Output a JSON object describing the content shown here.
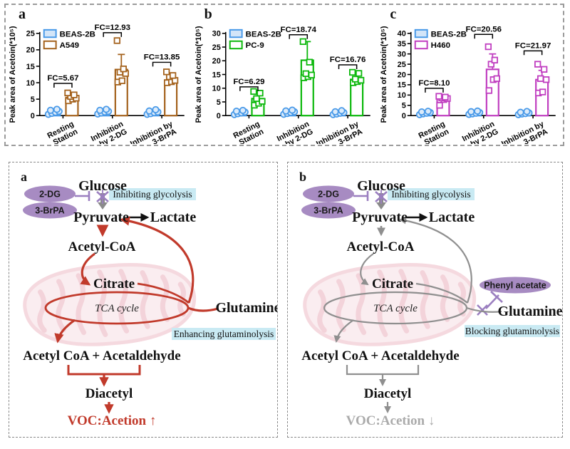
{
  "chart_data": [
    {
      "type": "bar",
      "letter": "a",
      "ylabel": "Peak area of Acetoin(*10⁵)",
      "ylim": [
        0,
        25
      ],
      "ytick_step": 5,
      "categories": [
        [
          "Resting",
          "Station"
        ],
        [
          "Inhibition",
          "by 2-DG"
        ],
        [
          "Inhibition by",
          "3-BrPA"
        ]
      ],
      "series": [
        {
          "name": "BEAS-2B",
          "color": "#4899E8",
          "marker": "circle",
          "bars": [
            0.9,
            1.0,
            0.85
          ],
          "errors": [
            0,
            0,
            0
          ],
          "points": [
            [
              0.4,
              0.7,
              1.0,
              1.3,
              1.6,
              1.9
            ],
            [
              0.5,
              0.8,
              1.1,
              1.3,
              1.6,
              1.9
            ],
            [
              0.4,
              0.6,
              0.9,
              1.1,
              1.4,
              1.8
            ]
          ]
        },
        {
          "name": "A549",
          "color": "#A4621D",
          "marker": "square",
          "bars": [
            5.5,
            14.0,
            10.8
          ],
          "errors": [
            1.0,
            4.6,
            1.6
          ],
          "points": [
            [
              4.5,
              5.0,
              5.3,
              5.8,
              6.3,
              6.9
            ],
            [
              10.2,
              10.6,
              12.8,
              13.2,
              14.2,
              22.8
            ],
            [
              10.0,
              10.3,
              10.7,
              11.8,
              12.2,
              13.3
            ]
          ]
        }
      ],
      "fc": [
        {
          "label": "FC=5.67",
          "y": 9.8
        },
        {
          "label": "FC=12.93",
          "y": 25.2
        },
        {
          "label": "FC=13.85",
          "y": 16.2
        }
      ]
    },
    {
      "type": "bar",
      "letter": "b",
      "ylabel": "Peak area of Acetoin(*10⁵)",
      "ylim": [
        0,
        30
      ],
      "ytick_step": 5,
      "categories": [
        [
          "Resting",
          "Station"
        ],
        [
          "Inhibition",
          "by 2-DG"
        ],
        [
          "Inhibition by",
          "3-BrPA"
        ]
      ],
      "series": [
        {
          "name": "BEAS-2B",
          "color": "#4899E8",
          "marker": "circle",
          "bars": [
            0.9,
            1.1,
            0.8
          ],
          "errors": [
            0,
            0,
            0
          ],
          "points": [
            [
              0.4,
              0.7,
              1.0,
              1.3,
              1.6,
              1.9
            ],
            [
              0.5,
              0.8,
              1.1,
              1.4,
              1.7,
              2.0
            ],
            [
              0.4,
              0.6,
              0.9,
              1.1,
              1.4,
              1.8
            ]
          ]
        },
        {
          "name": "PC-9",
          "color": "#0CB80C",
          "marker": "square",
          "bars": [
            6.2,
            20.2,
            13.2
          ],
          "errors": [
            1.6,
            6.8,
            2.0
          ],
          "points": [
            [
              3.8,
              4.5,
              5.2,
              6.2,
              8.2,
              8.8
            ],
            [
              13.8,
              14.2,
              14.8,
              15.3,
              19.5,
              27.0
            ],
            [
              12.0,
              12.4,
              12.9,
              13.3,
              15.4,
              15.8
            ]
          ]
        }
      ],
      "fc": [
        {
          "label": "FC=6.29",
          "y": 10.5
        },
        {
          "label": "FC=18.74",
          "y": 29.5
        },
        {
          "label": "FC=16.76",
          "y": 18.5
        }
      ]
    },
    {
      "type": "bar",
      "letter": "c",
      "ylabel": "Peak area of Acetoin(*10⁵)",
      "ylim": [
        0,
        40
      ],
      "ytick_step": 5,
      "categories": [
        [
          "Resting",
          "Station"
        ],
        [
          "Inhibition",
          "by 2-DG"
        ],
        [
          "Inhibition by",
          "3-BrPA"
        ]
      ],
      "series": [
        {
          "name": "BEAS-2B",
          "color": "#4899E8",
          "marker": "circle",
          "bars": [
            1.0,
            1.2,
            0.9
          ],
          "errors": [
            0,
            0,
            0
          ],
          "points": [
            [
              0.5,
              0.9,
              1.2,
              1.5,
              1.8,
              2.1
            ],
            [
              0.6,
              0.9,
              1.2,
              1.5,
              1.9,
              2.2
            ],
            [
              0.5,
              0.8,
              1.0,
              1.3,
              1.6,
              2.0
            ]
          ]
        },
        {
          "name": "H460",
          "color": "#C03EC0",
          "marker": "square",
          "bars": [
            8.5,
            22.5,
            17.5
          ],
          "errors": [
            1.2,
            7.5,
            4.5
          ],
          "points": [
            [
              5.0,
              7.8,
              8.3,
              8.6,
              9.0,
              9.4
            ],
            [
              12.2,
              17.5,
              18.0,
              25.0,
              27.0,
              33.5
            ],
            [
              11.0,
              11.5,
              17.5,
              18.0,
              22.5,
              25.0
            ]
          ]
        }
      ],
      "fc": [
        {
          "label": "FC=8.10",
          "y": 13.3
        },
        {
          "label": "FC=20.56",
          "y": 39.5
        },
        {
          "label": "FC=21.97",
          "y": 31.5
        }
      ]
    }
  ],
  "diagrams": [
    {
      "letter": "a",
      "accent": "#C13A2B",
      "gray": "#8A8A8A",
      "inhibit_color": "#9B7FC0",
      "pill_fill": "#A78BC2",
      "callout_fill": "#C9EAF3",
      "mito_fill": "#F8E3E7",
      "mito_stroke": "#EFC3CC",
      "cristae_color": "#ECB9C4",
      "voc_color": "#C13A2B",
      "pills": {
        "pill1": "2-DG",
        "pill2": "3-BrPA"
      },
      "callout_top": "Inhibiting glycolysis",
      "callout_bottom": "Enhancing glutaminolysis",
      "nodes": {
        "glucose": "Glucose",
        "pyruvate": "Pyruvate",
        "lactate": "Lactate",
        "acetyl_coa": "Acetyl-CoA",
        "citrate": "Citrate",
        "tca": "TCA cycle",
        "glutamine": "Glutamine",
        "acetal": "Acetyl CoA + Acetaldehyde",
        "diacetyl": "Diacetyl",
        "voc": "VOC:Acetion ↑"
      }
    },
    {
      "letter": "b",
      "accent": "#8F8F8F",
      "gray": "#8A8A8A",
      "inhibit_color": "#9B7FC0",
      "pill_fill": "#A78BC2",
      "callout_fill": "#C9EAF3",
      "mito_fill": "#F8E3E7",
      "mito_stroke": "#EFC3CC",
      "cristae_color": "#ECB9C4",
      "voc_color": "#ABABAB",
      "pills": {
        "pill1": "2-DG",
        "pill2": "3-BrPA",
        "pill3": "Phenyl acetate"
      },
      "callout_top": "Inhibiting glycolysis",
      "callout_bottom": "Blocking glutaminolysis",
      "nodes": {
        "glucose": "Glucose",
        "pyruvate": "Pyruvate",
        "lactate": "Lactate",
        "acetyl_coa": "Acetyl-CoA",
        "citrate": "Citrate",
        "tca": "TCA cycle",
        "glutamine": "Glutamine",
        "acetal": "Acetyl CoA + Acetaldehyde",
        "diacetyl": "Diacetyl",
        "voc": "VOC:Acetion ↓"
      }
    }
  ]
}
